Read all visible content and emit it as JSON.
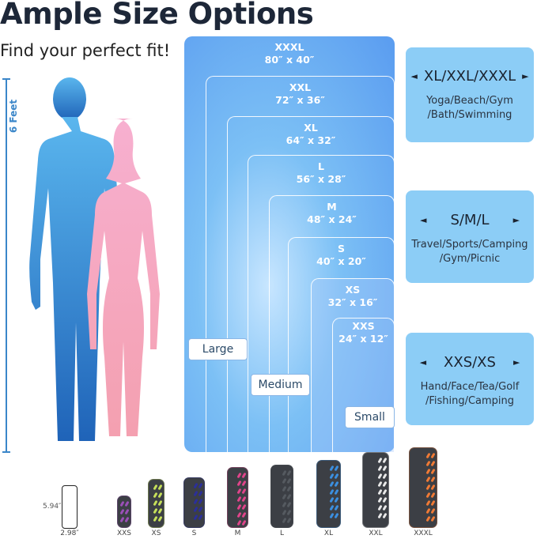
{
  "title": "Ample Size Options",
  "subtitle": "Find your perfect fit!",
  "height_label": "6 Feet",
  "sizes": [
    {
      "name": "XXXL",
      "dims": "80″ x 40″"
    },
    {
      "name": "XXL",
      "dims": "72″ x 36″"
    },
    {
      "name": "XL",
      "dims": "64″ x 32″"
    },
    {
      "name": "L",
      "dims": "56″ x 28″"
    },
    {
      "name": "M",
      "dims": "48″ x 24″"
    },
    {
      "name": "S",
      "dims": "40″ x 20″"
    },
    {
      "name": "XS",
      "dims": "32″ x 16″"
    },
    {
      "name": "XXS",
      "dims": "24″ x 12″"
    }
  ],
  "groups": {
    "large": "Large",
    "medium": "Medium",
    "small": "Small"
  },
  "cards": [
    {
      "heading": "XL/XXL/XXXL",
      "desc1": "Yoga/Beach/Gym",
      "desc2": "/Bath/Swimming"
    },
    {
      "heading": "S/M/L",
      "desc1": "Travel/Sports/Camping",
      "desc2": "/Gym/Picnic"
    },
    {
      "heading": "XXS/XS",
      "desc1": "Hand/Face/Tea/Golf",
      "desc2": "/Fishing/Camping"
    }
  ],
  "phone": {
    "height": "5.94″",
    "width": "2.98″"
  },
  "towels": [
    {
      "label": "XXS",
      "color": "#9b4fb8"
    },
    {
      "label": "XS",
      "color": "#c6e05a"
    },
    {
      "label": "S",
      "color": "#2b2f9a"
    },
    {
      "label": "M",
      "color": "#e0448a"
    },
    {
      "label": "L",
      "color": "#555a60"
    },
    {
      "label": "XL",
      "color": "#3b8fe0"
    },
    {
      "label": "XXL",
      "color": "#e8e8e8"
    },
    {
      "label": "XXXL",
      "color": "#f07a35"
    }
  ],
  "colors": {
    "man": "#2f7fd0",
    "woman": "#f5a9c4",
    "accent": "#3a86c9"
  }
}
